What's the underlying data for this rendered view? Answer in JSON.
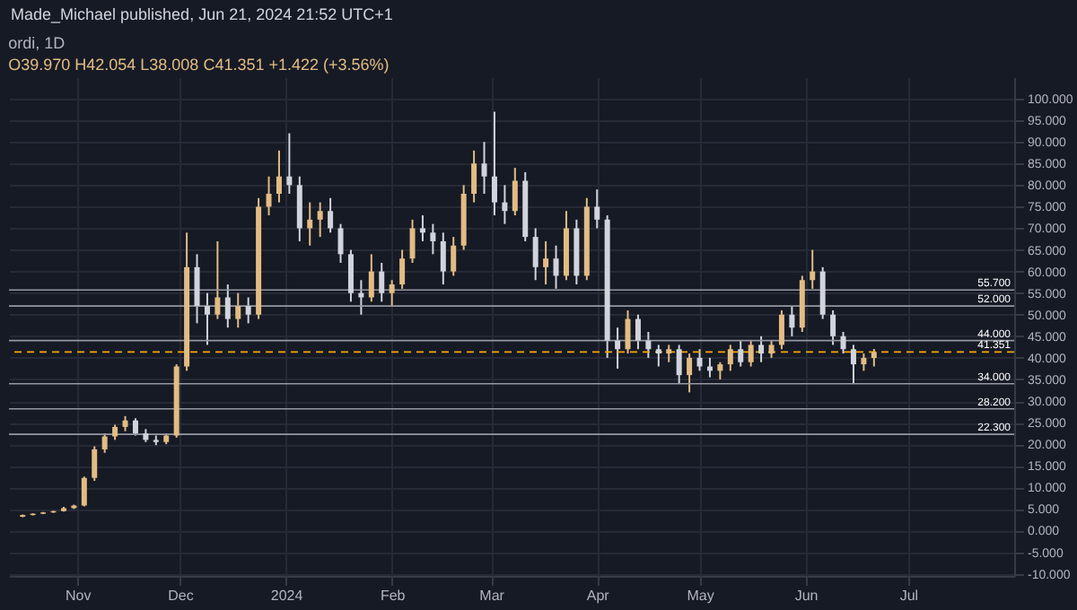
{
  "chart_data": {
    "type": "candlestick",
    "title": "ordi, 1D",
    "subtitle": "O39.970 H42.054 L38.008 C41.351 +1.422 (+3.56%)",
    "annotations": [
      "Made_Michael published, Jun 21, 2024 21:52 UTC+1"
    ],
    "x": [
      "2023-10-16",
      "2023-10-19",
      "2023-10-22",
      "2023-10-25",
      "2023-10-28",
      "2023-10-31",
      "2023-11-03",
      "2023-11-06",
      "2023-11-09",
      "2023-11-12",
      "2023-11-15",
      "2023-11-18",
      "2023-11-21",
      "2023-11-24",
      "2023-11-27",
      "2023-11-30",
      "2023-12-03",
      "2023-12-06",
      "2023-12-09",
      "2023-12-12",
      "2023-12-15",
      "2023-12-18",
      "2023-12-21",
      "2023-12-24",
      "2023-12-27",
      "2023-12-30",
      "2024-01-02",
      "2024-01-05",
      "2024-01-08",
      "2024-01-11",
      "2024-01-14",
      "2024-01-17",
      "2024-01-20",
      "2024-01-23",
      "2024-01-26",
      "2024-01-29",
      "2024-02-01",
      "2024-02-04",
      "2024-02-07",
      "2024-02-10",
      "2024-02-13",
      "2024-02-16",
      "2024-02-19",
      "2024-02-22",
      "2024-02-25",
      "2024-02-28",
      "2024-03-02",
      "2024-03-05",
      "2024-03-08",
      "2024-03-11",
      "2024-03-14",
      "2024-03-17",
      "2024-03-20",
      "2024-03-23",
      "2024-03-26",
      "2024-03-29",
      "2024-04-01",
      "2024-04-04",
      "2024-04-07",
      "2024-04-10",
      "2024-04-13",
      "2024-04-16",
      "2024-04-19",
      "2024-04-22",
      "2024-04-25",
      "2024-04-28",
      "2024-05-01",
      "2024-05-04",
      "2024-05-07",
      "2024-05-10",
      "2024-05-13",
      "2024-05-16",
      "2024-05-19",
      "2024-05-22",
      "2024-05-25",
      "2024-05-28",
      "2024-05-31",
      "2024-06-03",
      "2024-06-06",
      "2024-06-09",
      "2024-06-12",
      "2024-06-15",
      "2024-06-18",
      "2024-06-21"
    ],
    "ohlc": [
      [
        3.2,
        3.7,
        3.1,
        3.6
      ],
      [
        3.6,
        4.0,
        3.5,
        3.9
      ],
      [
        3.9,
        4.3,
        3.8,
        4.2
      ],
      [
        4.2,
        4.6,
        4.1,
        4.5
      ],
      [
        4.5,
        5.5,
        4.4,
        5.2
      ],
      [
        5.2,
        6,
        5,
        5.8
      ],
      [
        5.8,
        12.5,
        5.6,
        12.2
      ],
      [
        12.2,
        19.5,
        11.5,
        18.8
      ],
      [
        18.8,
        22.5,
        18,
        21.8
      ],
      [
        21.8,
        24.5,
        21,
        24
      ],
      [
        24,
        26.5,
        23,
        25.5
      ],
      [
        25.5,
        26,
        22,
        22.5
      ],
      [
        22.5,
        23.5,
        20.5,
        21
      ],
      [
        21,
        22,
        19.8,
        20.5
      ],
      [
        20.5,
        22.5,
        20,
        22
      ],
      [
        22,
        38.5,
        21.5,
        38
      ],
      [
        38,
        69,
        37,
        61
      ],
      [
        61,
        64,
        48,
        52
      ],
      [
        52,
        55,
        43,
        50
      ],
      [
        50,
        67,
        49,
        54
      ],
      [
        54,
        57,
        47,
        49
      ],
      [
        49,
        55,
        47,
        52
      ],
      [
        52,
        54,
        48,
        50
      ],
      [
        50,
        77,
        49,
        75
      ],
      [
        75,
        82,
        73,
        78
      ],
      [
        78,
        88,
        76,
        82
      ],
      [
        82,
        92,
        78,
        80
      ],
      [
        80,
        82,
        67,
        70
      ],
      [
        70,
        76,
        66,
        72
      ],
      [
        72,
        76,
        68,
        74
      ],
      [
        74,
        77,
        69,
        70
      ],
      [
        70,
        71,
        62,
        64
      ],
      [
        64,
        65,
        53,
        55
      ],
      [
        55,
        58,
        50,
        54
      ],
      [
        54,
        64,
        53,
        60
      ],
      [
        60,
        62,
        53,
        55
      ],
      [
        55,
        58,
        52,
        57
      ],
      [
        57,
        65,
        56,
        63
      ],
      [
        63,
        72,
        62,
        70
      ],
      [
        70,
        73,
        67,
        69
      ],
      [
        69,
        71,
        64,
        67
      ],
      [
        67,
        69,
        57,
        60
      ],
      [
        60,
        68,
        59,
        66
      ],
      [
        66,
        80,
        65,
        78
      ],
      [
        78,
        88,
        76,
        85
      ],
      [
        85,
        90,
        78,
        82
      ],
      [
        82,
        97,
        73,
        76
      ],
      [
        76,
        80,
        71,
        74
      ],
      [
        74,
        84,
        73,
        81
      ],
      [
        81,
        83,
        67,
        68
      ],
      [
        68,
        70,
        58,
        61
      ],
      [
        61,
        67,
        57,
        63
      ],
      [
        63,
        66,
        56,
        59
      ],
      [
        59,
        74,
        58,
        70
      ],
      [
        70,
        72,
        57,
        59
      ],
      [
        59,
        77,
        58,
        75
      ],
      [
        75,
        79,
        70,
        72
      ],
      [
        72,
        73,
        40,
        44
      ],
      [
        44,
        47,
        37.5,
        42
      ],
      [
        42,
        51,
        41,
        49
      ],
      [
        49,
        50,
        42,
        44
      ],
      [
        44,
        46,
        40,
        42
      ],
      [
        42,
        43,
        38,
        41
      ],
      [
        41,
        43,
        39,
        42
      ],
      [
        42,
        43,
        34,
        36
      ],
      [
        36,
        41,
        32,
        40
      ],
      [
        40,
        42,
        37,
        38
      ],
      [
        38,
        40,
        35.5,
        37
      ],
      [
        37,
        39,
        35,
        38.5
      ],
      [
        38.5,
        43,
        37,
        42
      ],
      [
        42,
        44,
        38,
        39
      ],
      [
        39,
        44,
        38,
        43
      ],
      [
        43,
        45,
        39,
        41
      ],
      [
        41,
        44,
        40,
        43
      ],
      [
        43,
        51,
        42,
        50
      ],
      [
        50,
        52,
        45,
        47
      ],
      [
        47,
        59,
        46,
        58
      ],
      [
        58,
        65,
        56,
        60
      ],
      [
        60,
        61,
        49,
        50
      ],
      [
        50,
        51,
        43,
        45
      ],
      [
        45,
        46,
        41,
        42
      ],
      [
        42,
        43,
        34,
        38.5
      ],
      [
        38.5,
        41,
        37,
        39.97
      ],
      [
        39.97,
        42.054,
        38.008,
        41.351
      ]
    ],
    "colors": [
      "#e2bc83",
      "#e2bc83",
      "#e2bc83",
      "#e2bc83",
      "#e2bc83",
      "#e2bc83",
      "#e2bc83",
      "#e2bc83",
      "#e2bc83",
      "#e2bc83",
      "#e2bc83",
      "#d1d4dc",
      "#d1d4dc",
      "#d1d4dc",
      "#e2bc83",
      "#e2bc83",
      "#e2bc83",
      "#d1d4dc",
      "#d1d4dc",
      "#e2bc83",
      "#d1d4dc",
      "#e2bc83",
      "#d1d4dc",
      "#e2bc83",
      "#e2bc83",
      "#e2bc83",
      "#d1d4dc",
      "#d1d4dc",
      "#e2bc83",
      "#e2bc83",
      "#d1d4dc",
      "#d1d4dc",
      "#d1d4dc",
      "#d1d4dc",
      "#e2bc83",
      "#d1d4dc",
      "#e2bc83",
      "#e2bc83",
      "#e2bc83",
      "#d1d4dc",
      "#d1d4dc",
      "#d1d4dc",
      "#e2bc83",
      "#e2bc83",
      "#e2bc83",
      "#d1d4dc",
      "#d1d4dc",
      "#d1d4dc",
      "#e2bc83",
      "#d1d4dc",
      "#d1d4dc",
      "#e2bc83",
      "#d1d4dc",
      "#e2bc83",
      "#d1d4dc",
      "#e2bc83",
      "#d1d4dc",
      "#d1d4dc",
      "#d1d4dc",
      "#e2bc83",
      "#d1d4dc",
      "#d1d4dc",
      "#d1d4dc",
      "#e2bc83",
      "#d1d4dc",
      "#e2bc83",
      "#d1d4dc",
      "#d1d4dc",
      "#e2bc83",
      "#e2bc83",
      "#d1d4dc",
      "#e2bc83",
      "#d1d4dc",
      "#e2bc83",
      "#e2bc83",
      "#d1d4dc",
      "#e2bc83",
      "#e2bc83",
      "#d1d4dc",
      "#d1d4dc",
      "#d1d4dc",
      "#d1d4dc",
      "#e2bc83",
      "#e2bc83"
    ],
    "xlim": [
      "2023-10-12",
      "2024-08-01"
    ],
    "xticks": [
      {
        "value": "2023-11-01",
        "label": "Nov"
      },
      {
        "value": "2023-12-01",
        "label": "Dec"
      },
      {
        "value": "2024-01-01",
        "label": "2024"
      },
      {
        "value": "2024-02-01",
        "label": "Feb"
      },
      {
        "value": "2024-03-01",
        "label": "Mar"
      },
      {
        "value": "2024-04-01",
        "label": "Apr"
      },
      {
        "value": "2024-05-01",
        "label": "May"
      },
      {
        "value": "2024-06-01",
        "label": "Jun"
      },
      {
        "value": "2024-07-01",
        "label": "Jul"
      }
    ],
    "ylim": [
      -10.5,
      105
    ],
    "yticks": [
      {
        "value": -10,
        "label": "-10.000"
      },
      {
        "value": -5,
        "label": "-5.000"
      },
      {
        "value": 0,
        "label": "0.000"
      },
      {
        "value": 5,
        "label": "5.000"
      },
      {
        "value": 10,
        "label": "10.000"
      },
      {
        "value": 15,
        "label": "15.000"
      },
      {
        "value": 20,
        "label": "20.000"
      },
      {
        "value": 25,
        "label": "25.000"
      },
      {
        "value": 30,
        "label": "30.000"
      },
      {
        "value": 35,
        "label": "35.000"
      },
      {
        "value": 40,
        "label": "40.000"
      },
      {
        "value": 45,
        "label": "45.000"
      },
      {
        "value": 50,
        "label": "50.000"
      },
      {
        "value": 55,
        "label": "55.000"
      },
      {
        "value": 60,
        "label": "60.000"
      },
      {
        "value": 65,
        "label": "65.000"
      },
      {
        "value": 70,
        "label": "70.000"
      },
      {
        "value": 75,
        "label": "75.000"
      },
      {
        "value": 80,
        "label": "80.000"
      },
      {
        "value": 85,
        "label": "85.000"
      },
      {
        "value": 90,
        "label": "90.000"
      },
      {
        "value": 95,
        "label": "95.000"
      },
      {
        "value": 100,
        "label": "100.000"
      }
    ],
    "ref_lines": [
      {
        "axis": "y",
        "value": 55.7,
        "label": "55.700",
        "color": "#9598a1"
      },
      {
        "axis": "y",
        "value": 52,
        "label": "52.000",
        "color": "#9598a1"
      },
      {
        "axis": "y",
        "value": 44,
        "label": "44.000",
        "color": "#9598a1"
      },
      {
        "axis": "y",
        "value": 41.351,
        "label": "41.351",
        "color": "#f7a600",
        "line_style": "dashed"
      },
      {
        "axis": "y",
        "value": 34,
        "label": "34.000",
        "color": "#9598a1"
      },
      {
        "axis": "y",
        "value": 28.2,
        "label": "28.200",
        "color": "#9598a1"
      },
      {
        "axis": "y",
        "value": 22.3,
        "label": "22.300",
        "color": "#9598a1"
      }
    ],
    "grid": true
  }
}
